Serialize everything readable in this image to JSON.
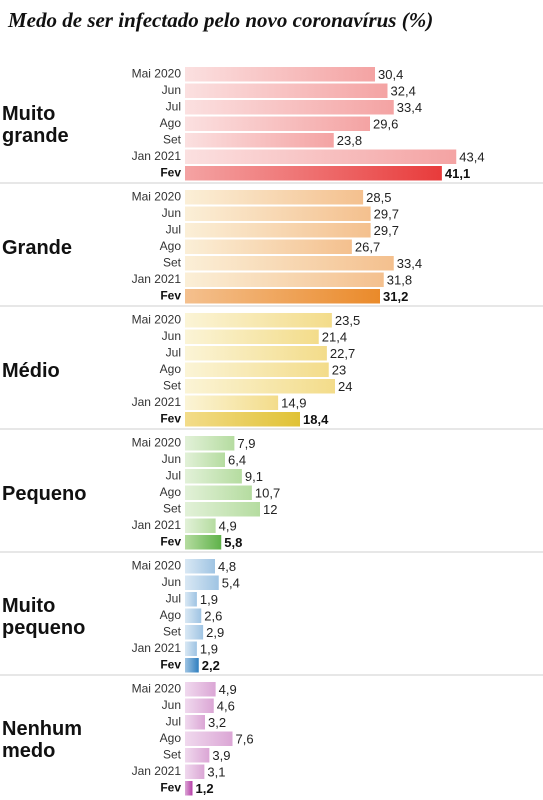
{
  "title": "Medo de ser infectado pelo novo coronavírus (%)",
  "chart_data": {
    "type": "bar",
    "orientation": "horizontal",
    "title": "Medo de ser infectado pelo novo coronavírus (%)",
    "months": [
      "Mai 2020",
      "Jun",
      "Jul",
      "Ago",
      "Set",
      "Jan 2021",
      "Fev"
    ],
    "series": [
      {
        "name": "Muito grande",
        "lines": [
          "Muito",
          "grande"
        ],
        "values": [
          30.4,
          32.4,
          33.4,
          29.6,
          23.8,
          43.4,
          41.1
        ],
        "colors": {
          "light": "#fbe0e0",
          "mid": "#f4a3a3",
          "strong": "#e83b3b"
        }
      },
      {
        "name": "Grande",
        "lines": [
          "Grande"
        ],
        "values": [
          28.5,
          29.7,
          29.7,
          26.7,
          33.4,
          31.8,
          31.2
        ],
        "colors": {
          "light": "#fbefd7",
          "mid": "#f4c08e",
          "strong": "#ea8a2a"
        }
      },
      {
        "name": "Médio",
        "lines": [
          "Médio"
        ],
        "values": [
          23.5,
          21.4,
          22.7,
          23,
          24,
          14.9,
          18.4
        ],
        "colors": {
          "light": "#fbf4d6",
          "mid": "#f3dc8a",
          "strong": "#e0c235"
        }
      },
      {
        "name": "Pequeno",
        "lines": [
          "Pequeno"
        ],
        "values": [
          7.9,
          6.4,
          9.1,
          10.7,
          12,
          4.9,
          5.8
        ],
        "colors": {
          "light": "#e2f1d8",
          "mid": "#b5dca0",
          "strong": "#5fb24a"
        }
      },
      {
        "name": "Muito pequeno",
        "lines": [
          "Muito",
          "pequeno"
        ],
        "values": [
          4.8,
          5.4,
          1.9,
          2.6,
          2.9,
          1.9,
          2.2
        ],
        "colors": {
          "light": "#d9e8f4",
          "mid": "#9fc4e3",
          "strong": "#2f7fbf"
        }
      },
      {
        "name": "Nenhum medo",
        "lines": [
          "Nenhum",
          "medo"
        ],
        "values": [
          4.9,
          4.6,
          3.2,
          7.6,
          3.9,
          3.1,
          1.2
        ],
        "colors": {
          "light": "#f0d9ee",
          "mid": "#dba6d5",
          "strong": "#b63fa8"
        }
      }
    ],
    "xlim": [
      0,
      43.4
    ],
    "grid": false,
    "legend": "none"
  }
}
